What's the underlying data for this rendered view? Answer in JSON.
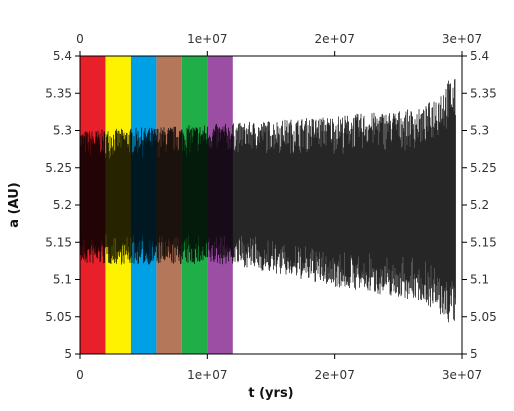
{
  "chart_data": {
    "type": "line",
    "title": "",
    "xlabel": "t (yrs)",
    "ylabel": "a (AU)",
    "xlim": [
      0,
      30000000
    ],
    "ylim": [
      5.0,
      5.4
    ],
    "x_ticks": [
      0,
      10000000,
      20000000,
      30000000
    ],
    "x_tick_labels": [
      "0",
      "1e+07",
      "2e+07",
      "3e+07"
    ],
    "y_ticks": [
      5.0,
      5.05,
      5.1,
      5.15,
      5.2,
      5.25,
      5.3,
      5.35,
      5.4
    ],
    "y_tick_labels": [
      "5",
      "5.05",
      "5.1",
      "5.15",
      "5.2",
      "5.25",
      "5.3",
      "5.35",
      "5.4"
    ],
    "mirror_axes": true,
    "grid": false,
    "legend": "none",
    "series": [
      {
        "color": "#000000",
        "x_range": [
          0,
          29500000
        ],
        "oscillation_min": [
          {
            "x": 0,
            "y": 5.12
          },
          {
            "x": 12000000,
            "y": 5.12
          },
          {
            "x": 20000000,
            "y": 5.09
          },
          {
            "x": 27000000,
            "y": 5.07
          },
          {
            "x": 29000000,
            "y": 5.04
          }
        ],
        "oscillation_max": [
          {
            "x": 0,
            "y": 5.3
          },
          {
            "x": 12000000,
            "y": 5.31
          },
          {
            "x": 20000000,
            "y": 5.32
          },
          {
            "x": 27000000,
            "y": 5.33
          },
          {
            "x": 29000000,
            "y": 5.37
          }
        ]
      }
    ],
    "bands": [
      {
        "x0": 0,
        "x1": 2000000,
        "color": "#e8202a"
      },
      {
        "x0": 2000000,
        "x1": 4000000,
        "color": "#fff200"
      },
      {
        "x0": 4000000,
        "x1": 6000000,
        "color": "#00a0e4"
      },
      {
        "x0": 6000000,
        "x1": 8000000,
        "color": "#b5775a"
      },
      {
        "x0": 8000000,
        "x1": 10000000,
        "color": "#1fae48"
      },
      {
        "x0": 10000000,
        "x1": 12000000,
        "color": "#9b4ea3"
      }
    ]
  }
}
